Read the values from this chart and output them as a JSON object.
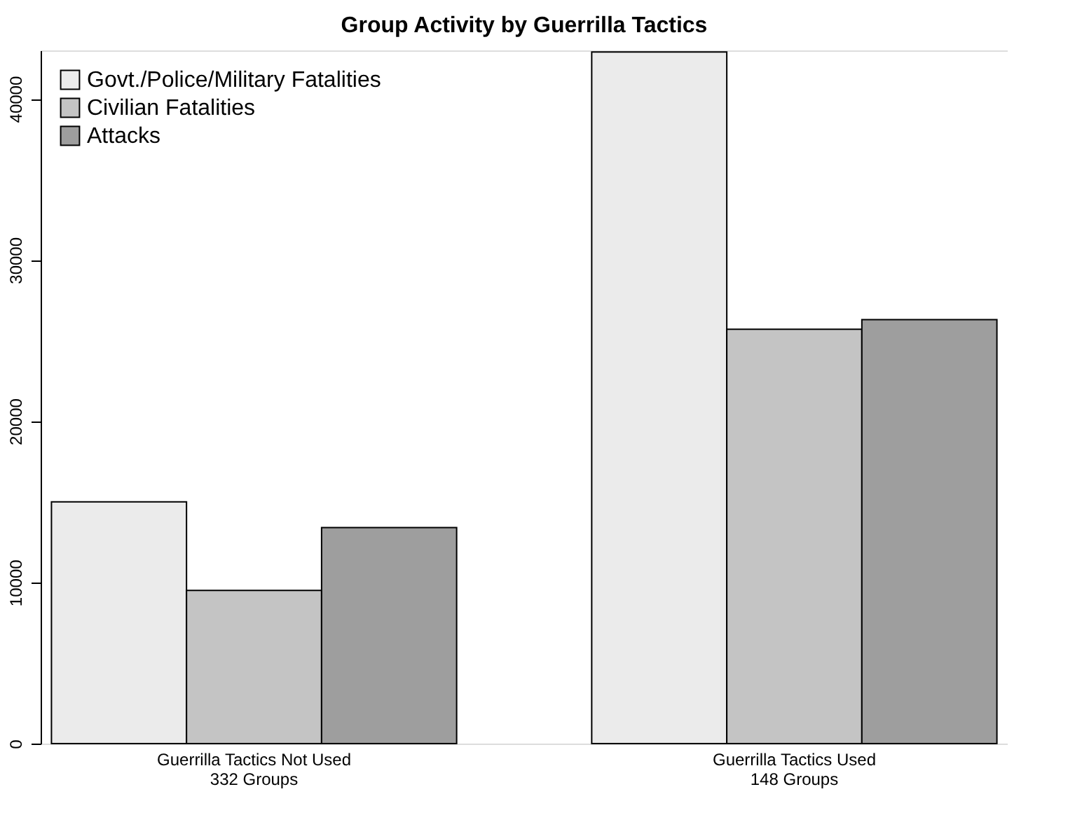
{
  "chart_data": {
    "type": "bar",
    "title": "Group Activity by Guerrilla Tactics",
    "categories": [
      "Guerrilla Tactics Not Used\n332 Groups",
      "Guerrilla Tactics Used\n148 Groups"
    ],
    "series": [
      {
        "name": "Govt./Police/Military Fatalities",
        "color": "#ebebeb",
        "values": [
          15000,
          42900
        ]
      },
      {
        "name": "Civilian Fatalities",
        "color": "#c4c4c4",
        "values": [
          9500,
          25700
        ]
      },
      {
        "name": "Attacks",
        "color": "#9e9e9e",
        "values": [
          13400,
          26300
        ]
      }
    ],
    "ylim": [
      0,
      43000
    ],
    "yticks": [
      0,
      10000,
      20000,
      30000,
      40000
    ],
    "grid": false,
    "legend": "top left"
  }
}
